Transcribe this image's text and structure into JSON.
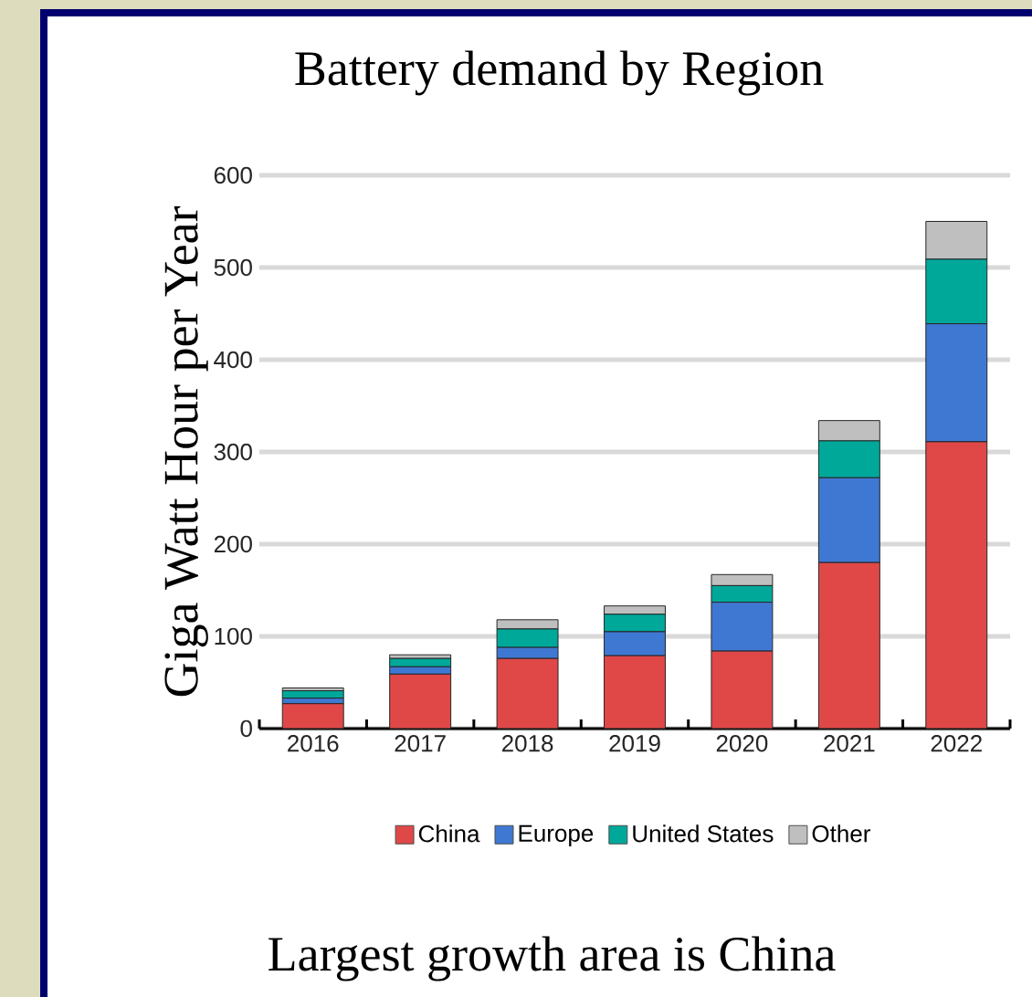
{
  "chart_data": {
    "type": "bar",
    "title": "Battery demand by Region",
    "ylabel": "Giga Watt Hour per Year",
    "categories": [
      "2016",
      "2017",
      "2018",
      "2019",
      "2020",
      "2021",
      "2022"
    ],
    "series": [
      {
        "name": "China",
        "color": "#e04848",
        "values": [
          27,
          59,
          76,
          79,
          84,
          180,
          311
        ]
      },
      {
        "name": "Europe",
        "color": "#3f78d2",
        "values": [
          6,
          8,
          12,
          26,
          53,
          92,
          128
        ]
      },
      {
        "name": "United States",
        "color": "#00a89a",
        "values": [
          8,
          9,
          20,
          19,
          18,
          40,
          70
        ]
      },
      {
        "name": "Other",
        "color": "#bfbfbf",
        "values": [
          3,
          4,
          10,
          9,
          12,
          22,
          41
        ]
      }
    ],
    "stacked": true,
    "ylim": [
      0,
      600
    ],
    "yticks": [
      0,
      100,
      200,
      300,
      400,
      500,
      600
    ],
    "grid": "y",
    "legend": "bottom",
    "annotations": [
      "Largest growth area is China"
    ]
  }
}
